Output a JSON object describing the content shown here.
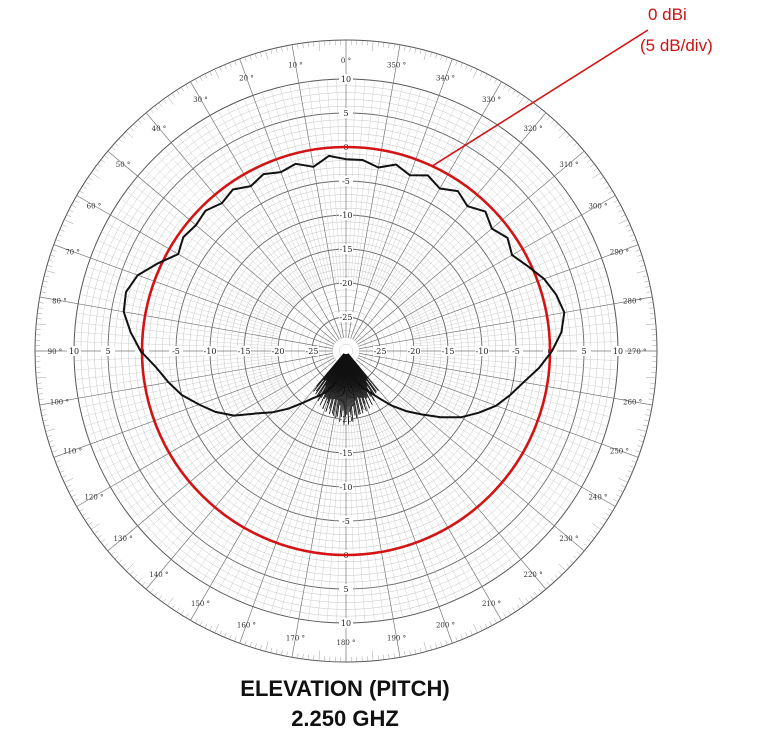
{
  "chart_data": {
    "type": "polar",
    "title": [
      "ELEVATION (PITCH)",
      "2.250 GHZ"
    ],
    "radial_unit": "dB",
    "radial_range": [
      -30,
      10
    ],
    "radial_ticks": [
      10,
      5,
      0,
      -5,
      -10,
      -15,
      -20,
      -25
    ],
    "angle_ticks": [
      0,
      10,
      20,
      30,
      40,
      50,
      60,
      70,
      80,
      90,
      100,
      110,
      120,
      130,
      140,
      150,
      160,
      170,
      180,
      190,
      200,
      210,
      220,
      230,
      240,
      250,
      260,
      270,
      280,
      290,
      300,
      310,
      320,
      330,
      340,
      350
    ],
    "reference_circle": {
      "value": 0,
      "color": "#d41414"
    },
    "annotation": [
      "0 dBi",
      "(5 dB/div)"
    ],
    "series": [
      {
        "color": "#111111",
        "points": [
          [
            0,
            -1.8
          ],
          [
            5,
            -1.2
          ],
          [
            10,
            -2.5
          ],
          [
            15,
            -1.5
          ],
          [
            20,
            -2.0
          ],
          [
            25,
            -1.3
          ],
          [
            30,
            -2.0
          ],
          [
            35,
            -1.0
          ],
          [
            40,
            -1.6
          ],
          [
            45,
            -0.8
          ],
          [
            50,
            -1.2
          ],
          [
            55,
            -0.8
          ],
          [
            60,
            -1.5
          ],
          [
            65,
            0.5
          ],
          [
            70,
            2.6
          ],
          [
            75,
            3.5
          ],
          [
            80,
            3.2
          ],
          [
            85,
            1.8
          ],
          [
            90,
            0.2
          ],
          [
            95,
            -2.0
          ],
          [
            100,
            -3.5
          ],
          [
            105,
            -5.0
          ],
          [
            110,
            -7.0
          ],
          [
            115,
            -8.8
          ],
          [
            120,
            -11.0
          ],
          [
            125,
            -14.0
          ],
          [
            130,
            -16.0
          ],
          [
            135,
            -18.0
          ],
          [
            140,
            -20.0
          ],
          [
            145,
            -21.5
          ],
          [
            150,
            -22.5
          ],
          [
            155,
            -23.5
          ],
          [
            160,
            -24.8
          ],
          [
            165,
            -25.8
          ],
          [
            170,
            -27.0
          ],
          [
            175,
            -27.5
          ],
          [
            180,
            -28.0
          ],
          [
            185,
            -27.5
          ],
          [
            190,
            -27.0
          ],
          [
            195,
            -26.0
          ],
          [
            200,
            -25.0
          ],
          [
            205,
            -24.0
          ],
          [
            210,
            -23.0
          ],
          [
            215,
            -21.5
          ],
          [
            220,
            -19.5
          ],
          [
            225,
            -17.5
          ],
          [
            230,
            -15.5
          ],
          [
            235,
            -13.0
          ],
          [
            240,
            -10.5
          ],
          [
            245,
            -8.5
          ],
          [
            250,
            -6.5
          ],
          [
            255,
            -5.0
          ],
          [
            260,
            -3.5
          ],
          [
            265,
            -1.5
          ],
          [
            270,
            0.3
          ],
          [
            275,
            1.8
          ],
          [
            280,
            2.6
          ],
          [
            285,
            2.0
          ],
          [
            290,
            1.0
          ],
          [
            295,
            -0.5
          ],
          [
            300,
            -1.8
          ],
          [
            305,
            -1.0
          ],
          [
            310,
            -2.0
          ],
          [
            315,
            -1.0
          ],
          [
            320,
            -2.2
          ],
          [
            325,
            -1.3
          ],
          [
            330,
            -2.4
          ],
          [
            335,
            -1.5
          ],
          [
            340,
            -2.5
          ],
          [
            345,
            -1.6
          ],
          [
            350,
            -2.6
          ],
          [
            355,
            -1.8
          ],
          [
            360,
            -1.8
          ]
        ]
      }
    ]
  }
}
